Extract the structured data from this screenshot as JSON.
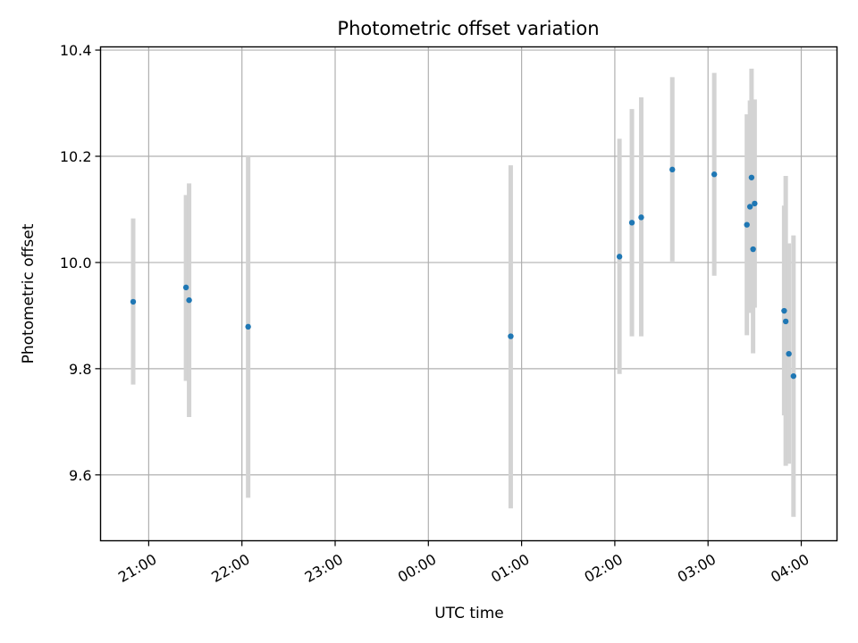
{
  "chart_data": {
    "type": "scatter",
    "title": "Photometric offset variation",
    "xlabel": "UTC time",
    "ylabel": "Photometric offset",
    "x_ticks": [
      "21:00",
      "22:00",
      "23:00",
      "00:00",
      "01:00",
      "02:00",
      "03:00",
      "04:00"
    ],
    "y_ticks": [
      "9.6",
      "9.8",
      "10.0",
      "10.2",
      "10.4"
    ],
    "xlim": [
      "20:29",
      "04:23"
    ],
    "ylim": [
      9.476,
      10.406
    ],
    "grid": true,
    "colors": {
      "point": "#1f77b4",
      "errorbar": "#d3d3d3",
      "grid": "#b0b0b0"
    },
    "series": [
      {
        "points": [
          {
            "x": "20:50",
            "y": 9.926,
            "err_low": 9.77,
            "err_high": 10.083
          },
          {
            "x": "21:24",
            "y": 9.953,
            "err_low": 9.777,
            "err_high": 10.127
          },
          {
            "x": "21:26",
            "y": 9.929,
            "err_low": 9.709,
            "err_high": 10.149
          },
          {
            "x": "22:04",
            "y": 9.879,
            "err_low": 9.557,
            "err_high": 10.2
          },
          {
            "x": "00:53",
            "y": 9.861,
            "err_low": 9.537,
            "err_high": 10.183
          },
          {
            "x": "02:03",
            "y": 10.011,
            "err_low": 9.79,
            "err_high": 10.233
          },
          {
            "x": "02:11",
            "y": 10.075,
            "err_low": 9.861,
            "err_high": 10.289
          },
          {
            "x": "02:17",
            "y": 10.085,
            "err_low": 9.861,
            "err_high": 10.311
          },
          {
            "x": "02:37",
            "y": 10.175,
            "err_low": 10.002,
            "err_high": 10.349
          },
          {
            "x": "03:04",
            "y": 10.166,
            "err_low": 9.975,
            "err_high": 10.357
          },
          {
            "x": "03:25",
            "y": 10.071,
            "err_low": 9.863,
            "err_high": 10.279
          },
          {
            "x": "03:27",
            "y": 10.105,
            "err_low": 9.905,
            "err_high": 10.305
          },
          {
            "x": "03:28",
            "y": 10.16,
            "err_low": 9.955,
            "err_high": 10.365
          },
          {
            "x": "03:29",
            "y": 10.025,
            "err_low": 9.829,
            "err_high": 10.221
          },
          {
            "x": "03:30",
            "y": 10.111,
            "err_low": 9.915,
            "err_high": 10.307
          },
          {
            "x": "03:49",
            "y": 9.909,
            "err_low": 9.712,
            "err_high": 10.107
          },
          {
            "x": "03:50",
            "y": 9.889,
            "err_low": 9.617,
            "err_high": 10.163
          },
          {
            "x": "03:52",
            "y": 9.828,
            "err_low": 9.621,
            "err_high": 10.036
          },
          {
            "x": "03:55",
            "y": 9.786,
            "err_low": 9.521,
            "err_high": 10.051
          }
        ]
      }
    ]
  }
}
